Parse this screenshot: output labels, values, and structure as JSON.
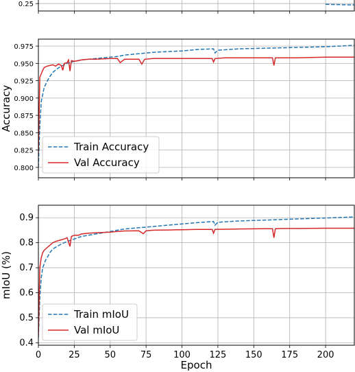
{
  "chart_data": [
    {
      "type": "line",
      "note": "top panel, cropped",
      "ylim": [
        0.22,
        0.27
      ],
      "yticks": [
        0.25
      ],
      "ytick_labels": [
        "0.25"
      ],
      "xlim": [
        0,
        220
      ],
      "series": [
        {
          "role": "train",
          "color": "#1f77b4",
          "dash": "dashed",
          "x": [
            200,
            210,
            220
          ],
          "y": [
            0.247,
            0.2455,
            0.2445
          ]
        }
      ]
    },
    {
      "type": "line",
      "ylabel": "Accuracy",
      "xlim": [
        0,
        220
      ],
      "ylim": [
        0.785,
        0.985
      ],
      "yticks": [
        0.8,
        0.825,
        0.85,
        0.875,
        0.9,
        0.925,
        0.95,
        0.975
      ],
      "ytick_labels": [
        "0.800",
        "0.825",
        "0.850",
        "0.875",
        "0.900",
        "0.925",
        "0.950",
        "0.975"
      ],
      "grid": true,
      "legend": "lower-left",
      "series": [
        {
          "name": "Train Accuracy",
          "color": "#1f77b4",
          "dash": "dashed",
          "x": [
            0,
            1,
            2,
            4,
            6,
            8,
            10,
            13,
            16,
            20,
            25,
            30,
            40,
            50,
            55,
            60,
            65,
            70,
            75,
            80,
            90,
            100,
            110,
            122,
            123,
            125,
            140,
            160,
            180,
            200,
            220
          ],
          "y": [
            0.8,
            0.86,
            0.895,
            0.915,
            0.924,
            0.931,
            0.937,
            0.942,
            0.946,
            0.95,
            0.953,
            0.955,
            0.957,
            0.959,
            0.96,
            0.962,
            0.963,
            0.964,
            0.965,
            0.966,
            0.967,
            0.968,
            0.97,
            0.971,
            0.965,
            0.969,
            0.971,
            0.972,
            0.973,
            0.974,
            0.976
          ]
        },
        {
          "name": "Val Accuracy",
          "color": "#d62728",
          "dash": "solid",
          "x": [
            0,
            1,
            2,
            3,
            4,
            6,
            8,
            10,
            12,
            14,
            16,
            17,
            18,
            20,
            21,
            22,
            23,
            25,
            28,
            30,
            35,
            40,
            50,
            55,
            57,
            60,
            70,
            72,
            74,
            80,
            90,
            100,
            110,
            121,
            122,
            123,
            130,
            140,
            160,
            163,
            164,
            165,
            170,
            180,
            200,
            220
          ],
          "y": [
            0.82,
            0.93,
            0.935,
            0.94,
            0.944,
            0.946,
            0.947,
            0.948,
            0.946,
            0.949,
            0.947,
            0.94,
            0.95,
            0.951,
            0.955,
            0.939,
            0.954,
            0.953,
            0.954,
            0.955,
            0.956,
            0.956,
            0.957,
            0.957,
            0.951,
            0.956,
            0.956,
            0.949,
            0.956,
            0.957,
            0.957,
            0.957,
            0.957,
            0.957,
            0.952,
            0.957,
            0.958,
            0.958,
            0.958,
            0.958,
            0.947,
            0.958,
            0.958,
            0.958,
            0.959,
            0.959
          ]
        }
      ]
    },
    {
      "type": "line",
      "ylabel": "mIoU (%)",
      "xlabel": "Epoch",
      "xlim": [
        0,
        220
      ],
      "ylim": [
        0.39,
        0.95
      ],
      "yticks": [
        0.4,
        0.5,
        0.6,
        0.7,
        0.8,
        0.9
      ],
      "ytick_labels": [
        "0.4",
        "0.5",
        "0.6",
        "0.7",
        "0.8",
        "0.9"
      ],
      "xticks": [
        0,
        25,
        50,
        75,
        100,
        125,
        150,
        175,
        200
      ],
      "xtick_labels": [
        "0",
        "25",
        "50",
        "75",
        "100",
        "125",
        "150",
        "175",
        "200"
      ],
      "grid": true,
      "legend": "lower-left",
      "series": [
        {
          "name": "Train mIoU",
          "color": "#1f77b4",
          "dash": "dashed",
          "x": [
            0,
            1,
            2,
            3,
            5,
            8,
            10,
            13,
            16,
            20,
            25,
            30,
            40,
            50,
            55,
            60,
            70,
            80,
            90,
            100,
            110,
            122,
            123,
            125,
            140,
            160,
            180,
            200,
            220
          ],
          "y": [
            0.42,
            0.58,
            0.66,
            0.7,
            0.73,
            0.76,
            0.775,
            0.785,
            0.795,
            0.805,
            0.815,
            0.825,
            0.835,
            0.845,
            0.85,
            0.855,
            0.86,
            0.865,
            0.87,
            0.875,
            0.88,
            0.885,
            0.87,
            0.882,
            0.887,
            0.891,
            0.895,
            0.899,
            0.903
          ]
        },
        {
          "name": "Val mIoU",
          "color": "#d62728",
          "dash": "solid",
          "x": [
            0,
            1,
            2,
            3,
            4,
            6,
            8,
            10,
            12,
            15,
            18,
            20,
            22,
            23,
            25,
            28,
            30,
            35,
            40,
            50,
            55,
            60,
            70,
            73,
            75,
            80,
            90,
            100,
            110,
            121,
            122,
            123,
            130,
            140,
            160,
            163,
            164,
            165,
            170,
            180,
            200,
            220
          ],
          "y": [
            0.43,
            0.7,
            0.74,
            0.76,
            0.77,
            0.78,
            0.79,
            0.8,
            0.805,
            0.81,
            0.815,
            0.82,
            0.785,
            0.825,
            0.83,
            0.83,
            0.835,
            0.838,
            0.84,
            0.842,
            0.845,
            0.847,
            0.848,
            0.836,
            0.848,
            0.85,
            0.851,
            0.852,
            0.853,
            0.853,
            0.838,
            0.853,
            0.854,
            0.855,
            0.856,
            0.856,
            0.82,
            0.856,
            0.857,
            0.857,
            0.858,
            0.858
          ]
        }
      ]
    }
  ]
}
